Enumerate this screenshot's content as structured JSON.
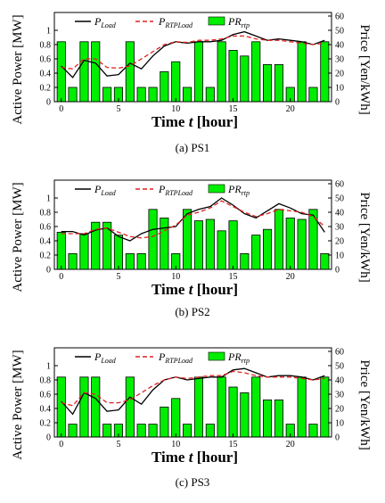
{
  "figure": {
    "panels": [
      {
        "caption": "(a)  PS1",
        "legend": {
          "load_main": "P",
          "load_sub": "Load",
          "rtp_main": "P",
          "rtp_sub": "RTPLoad",
          "pr_main": "PR",
          "pr_sub": "rtp"
        },
        "ylabel_left": "Active Power [MW]",
        "ylabel_right": "Price [Yen/kWh]",
        "xlabel_text": "Time ",
        "xlabel_var": "t",
        "xlabel_unit": " [hour]"
      },
      {
        "caption": "(b)  PS2",
        "legend": {
          "load_main": "P",
          "load_sub": "Load",
          "rtp_main": "P",
          "rtp_sub": "RTPLoad",
          "pr_main": "PR",
          "pr_sub": "rtp"
        },
        "ylabel_left": "Active Power [MW]",
        "ylabel_right": "Price [Yen/kWh]",
        "xlabel_text": "Time ",
        "xlabel_var": "t",
        "xlabel_unit": " [hour]"
      },
      {
        "caption": "(c)  PS3",
        "legend": {
          "load_main": "P",
          "load_sub": "Load",
          "rtp_main": "P",
          "rtp_sub": "RTPLoad",
          "pr_main": "PR",
          "pr_sub": "rtp"
        },
        "ylabel_left": "Active Power [MW]",
        "ylabel_right": "Price [Yen/kWh]",
        "xlabel_text": "Time ",
        "xlabel_var": "t",
        "xlabel_unit": " [hour]"
      }
    ]
  },
  "chart_data": [
    {
      "type": "bar",
      "title": "",
      "xticks": [
        0,
        5,
        10,
        15,
        20
      ],
      "xlim": [
        -0.6,
        23.6
      ],
      "ylim_left": [
        0,
        1.25
      ],
      "yticks_left": [
        0,
        0.2,
        0.4,
        0.6,
        0.8,
        1
      ],
      "ylim_right": [
        0,
        62.5
      ],
      "yticks_right": [
        0,
        10,
        20,
        30,
        40,
        50,
        60
      ],
      "x": [
        0,
        1,
        2,
        3,
        4,
        5,
        6,
        7,
        8,
        9,
        10,
        11,
        12,
        13,
        14,
        15,
        16,
        17,
        18,
        19,
        20,
        21,
        22,
        23
      ],
      "series": [
        {
          "name": "PRrtp",
          "axis": "right",
          "color": "#00ee00",
          "values": [
            42,
            10,
            42,
            42,
            10,
            10,
            42,
            10,
            10,
            21,
            28,
            10,
            42,
            10,
            42,
            36,
            32,
            42,
            26,
            26,
            10,
            42,
            10,
            42
          ]
        },
        {
          "name": "PLoad",
          "axis": "left",
          "color": "#000000",
          "values": [
            0.5,
            0.34,
            0.58,
            0.54,
            0.36,
            0.38,
            0.54,
            0.46,
            0.64,
            0.78,
            0.84,
            0.82,
            0.84,
            0.84,
            0.86,
            0.94,
            0.98,
            0.92,
            0.86,
            0.88,
            0.86,
            0.84,
            0.8,
            0.86
          ]
        },
        {
          "name": "PRTPLoad",
          "axis": "left",
          "color": "#e02020",
          "values": [
            0.48,
            0.46,
            0.6,
            0.6,
            0.48,
            0.47,
            0.5,
            0.6,
            0.7,
            0.8,
            0.84,
            0.83,
            0.86,
            0.86,
            0.88,
            0.92,
            0.92,
            0.88,
            0.86,
            0.86,
            0.84,
            0.82,
            0.8,
            0.82
          ]
        }
      ]
    },
    {
      "type": "bar",
      "title": "",
      "xticks": [
        0,
        5,
        10,
        15,
        20
      ],
      "xlim": [
        -0.6,
        23.6
      ],
      "ylim_left": [
        0,
        1.25
      ],
      "yticks_left": [
        0,
        0.2,
        0.4,
        0.6,
        0.8,
        1
      ],
      "ylim_right": [
        0,
        62.5
      ],
      "yticks_right": [
        0,
        10,
        20,
        30,
        40,
        50,
        60
      ],
      "x": [
        0,
        1,
        2,
        3,
        4,
        5,
        6,
        7,
        8,
        9,
        10,
        11,
        12,
        13,
        14,
        15,
        16,
        17,
        18,
        19,
        20,
        21,
        22,
        23
      ],
      "series": [
        {
          "name": "PRrtp",
          "axis": "right",
          "color": "#00ee00",
          "values": [
            26,
            11,
            25,
            33,
            33,
            24,
            11,
            11,
            42,
            36,
            11,
            42,
            34,
            35,
            27,
            34,
            11,
            24,
            28,
            42,
            36,
            35,
            42,
            11
          ]
        },
        {
          "name": "PLoad",
          "axis": "left",
          "color": "#000000",
          "values": [
            0.53,
            0.53,
            0.48,
            0.55,
            0.58,
            0.46,
            0.4,
            0.5,
            0.56,
            0.58,
            0.6,
            0.78,
            0.84,
            0.88,
            1.0,
            0.9,
            0.78,
            0.72,
            0.82,
            0.92,
            0.86,
            0.78,
            0.76,
            0.52
          ]
        },
        {
          "name": "PRTPLoad",
          "axis": "left",
          "color": "#e02020",
          "values": [
            0.5,
            0.5,
            0.5,
            0.56,
            0.58,
            0.52,
            0.46,
            0.44,
            0.46,
            0.54,
            0.62,
            0.76,
            0.8,
            0.86,
            0.96,
            0.88,
            0.8,
            0.74,
            0.78,
            0.84,
            0.82,
            0.8,
            0.74,
            0.6
          ]
        }
      ]
    },
    {
      "type": "bar",
      "title": "",
      "xticks": [
        0,
        5,
        10,
        15,
        20
      ],
      "xlim": [
        -0.6,
        23.6
      ],
      "ylim_left": [
        0,
        1.25
      ],
      "yticks_left": [
        0,
        0.2,
        0.4,
        0.6,
        0.8,
        1
      ],
      "ylim_right": [
        0,
        62.5
      ],
      "yticks_right": [
        0,
        10,
        20,
        30,
        40,
        50,
        60
      ],
      "x": [
        0,
        1,
        2,
        3,
        4,
        5,
        6,
        7,
        8,
        9,
        10,
        11,
        12,
        13,
        14,
        15,
        16,
        17,
        18,
        19,
        20,
        21,
        22,
        23
      ],
      "series": [
        {
          "name": "PRrtp",
          "axis": "right",
          "color": "#00ee00",
          "values": [
            42,
            9,
            42,
            42,
            9,
            9,
            42,
            9,
            9,
            21,
            27,
            9,
            42,
            9,
            42,
            35,
            31,
            42,
            26,
            26,
            9,
            42,
            9,
            42
          ]
        },
        {
          "name": "PLoad",
          "axis": "left",
          "color": "#000000",
          "values": [
            0.5,
            0.32,
            0.62,
            0.54,
            0.36,
            0.38,
            0.56,
            0.46,
            0.66,
            0.8,
            0.84,
            0.8,
            0.82,
            0.84,
            0.84,
            0.94,
            0.96,
            0.9,
            0.84,
            0.86,
            0.86,
            0.84,
            0.8,
            0.86
          ]
        },
        {
          "name": "PRTPLoad",
          "axis": "left",
          "color": "#e02020",
          "values": [
            0.48,
            0.44,
            0.62,
            0.6,
            0.48,
            0.48,
            0.52,
            0.62,
            0.72,
            0.8,
            0.84,
            0.82,
            0.84,
            0.86,
            0.86,
            0.92,
            0.9,
            0.86,
            0.84,
            0.84,
            0.84,
            0.82,
            0.8,
            0.82
          ]
        }
      ]
    }
  ]
}
